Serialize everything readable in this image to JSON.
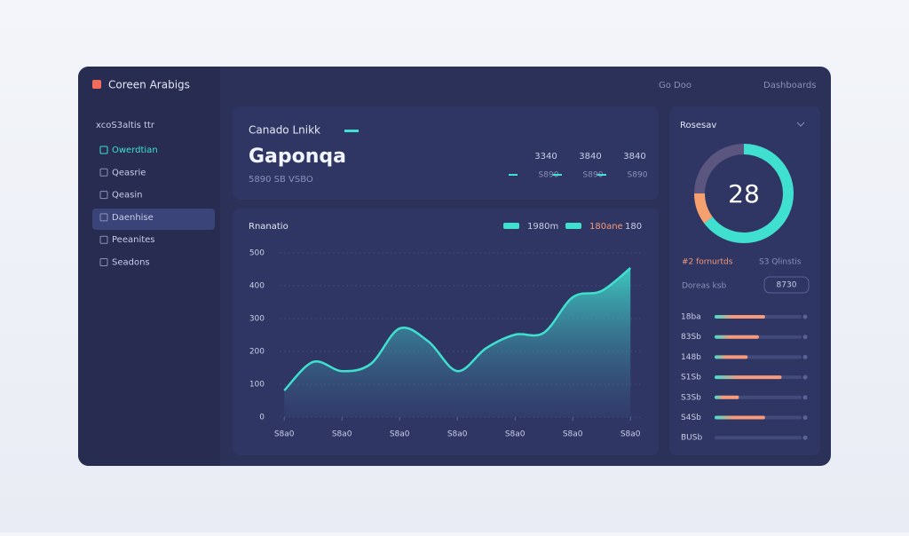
{
  "brand": "Coreen Arabigs",
  "search": "xcoS3altis ttr",
  "nav": [
    "Owerdtian",
    "Qeasrie",
    "Qeasin",
    "Daenhise",
    "Peeanites",
    "Seadons"
  ],
  "topbar": [
    "Go Doo",
    "Dashboards"
  ],
  "summary": {
    "title": "Canado Lnikk",
    "headline": "Gaponqa",
    "subtitle": "5890 SB VSBO",
    "stats": [
      {
        "value": "3340",
        "label": "S890"
      },
      {
        "value": "3840",
        "label": "S890"
      },
      {
        "value": "3840",
        "label": "S890"
      }
    ]
  },
  "chart_data": {
    "type": "area",
    "title": "Rnanatio",
    "legend": [
      "1980m",
      "180ane",
      "180"
    ],
    "x": [
      0,
      0.5,
      1,
      1.5,
      2,
      2.5,
      3,
      3.5,
      4,
      4.5,
      5,
      5.5,
      6
    ],
    "series": [
      {
        "name": "1980m",
        "color": "#3fe0cf",
        "values": [
          81,
          168,
          140,
          162,
          270,
          230,
          140,
          210,
          251,
          257,
          365,
          384,
          454
        ]
      }
    ],
    "xlim": [
      -0.08,
      6.12
    ],
    "xticks": [
      {
        "value": 0,
        "label": "S8a0"
      },
      {
        "value": 1,
        "label": "S8a0"
      },
      {
        "value": 2,
        "label": "S8a0"
      },
      {
        "value": 3,
        "label": "S8a0"
      },
      {
        "value": 4,
        "label": "S8a0"
      },
      {
        "value": 5,
        "label": "S8a0"
      },
      {
        "value": 6,
        "label": "S8a0"
      }
    ],
    "ylim": [
      0,
      500
    ],
    "yticks": [
      0,
      100,
      200,
      300,
      400,
      500
    ],
    "grid": true
  },
  "gauge": {
    "title": "Rosesav",
    "value": "28"
  },
  "panel": {
    "left": "#2 fornurtds",
    "right": "S3 Qlinstis",
    "filter": "Doreas ksb",
    "button": "8730",
    "bars": {
      "type": "progress",
      "categories": [
        "18ba",
        "83Sb",
        "148b",
        "S1Sb",
        "S3Sb",
        "S4Sb",
        "BUSb"
      ],
      "values": [
        58,
        51,
        38,
        77,
        28,
        58,
        0
      ],
      "xlim": [
        0,
        100
      ]
    }
  }
}
